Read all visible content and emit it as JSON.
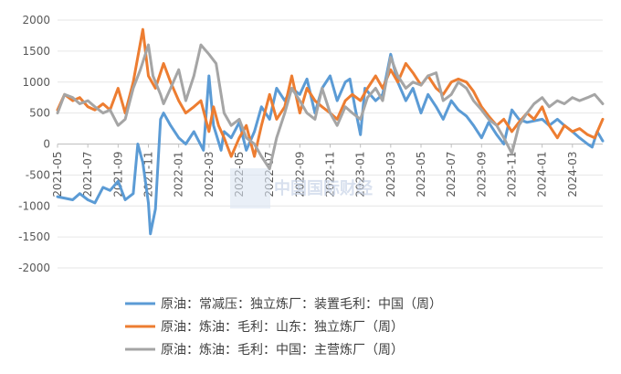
{
  "watermark": "中国国际财经",
  "chart_data": {
    "type": "line",
    "title": "",
    "xlabel": "",
    "ylabel": "",
    "ylim": [
      -2000,
      2000
    ],
    "yticks": [
      2000,
      1500,
      1000,
      500,
      0,
      -500,
      -1000,
      -1500,
      -2000
    ],
    "xlim": [
      "2021-05",
      "2024-05"
    ],
    "xticks": [
      "2021-05",
      "2021-07",
      "2021-09",
      "2021-11",
      "2022-01",
      "2022-03",
      "2022-05",
      "2022-07",
      "2022-09",
      "2022-11",
      "2023-01",
      "2023-03",
      "2023-05",
      "2023-07",
      "2023-09",
      "2023-11",
      "2024-01",
      "2024-03"
    ],
    "grid": true,
    "legend_position": "bottom",
    "series": [
      {
        "name": "原油：常减压：独立炼厂：装置毛利：中国（周）",
        "color": "#5b9bd5",
        "points": [
          [
            "2021-05",
            -850
          ],
          [
            "2021-06",
            -900
          ],
          [
            "2021-06-15",
            -800
          ],
          [
            "2021-07",
            -900
          ],
          [
            "2021-07-15",
            -950
          ],
          [
            "2021-08",
            -700
          ],
          [
            "2021-08-15",
            -750
          ],
          [
            "2021-09",
            -600
          ],
          [
            "2021-09-15",
            -900
          ],
          [
            "2021-10",
            -800
          ],
          [
            "2021-10-10",
            0
          ],
          [
            "2021-10-20",
            -300
          ],
          [
            "2021-11",
            -950
          ],
          [
            "2021-11-05",
            -1450
          ],
          [
            "2021-11-15",
            -1050
          ],
          [
            "2021-11-25",
            400
          ],
          [
            "2021-12",
            500
          ],
          [
            "2021-12-15",
            300
          ],
          [
            "2022-01",
            100
          ],
          [
            "2022-01-15",
            0
          ],
          [
            "2022-02",
            200
          ],
          [
            "2022-02-20",
            -100
          ],
          [
            "2022-03",
            1100
          ],
          [
            "2022-03-10",
            300
          ],
          [
            "2022-03-25",
            -100
          ],
          [
            "2022-04",
            200
          ],
          [
            "2022-04-15",
            100
          ],
          [
            "2022-05",
            350
          ],
          [
            "2022-05-15",
            -100
          ],
          [
            "2022-06",
            200
          ],
          [
            "2022-06-15",
            600
          ],
          [
            "2022-07",
            400
          ],
          [
            "2022-07-15",
            900
          ],
          [
            "2022-08",
            700
          ],
          [
            "2022-08-15",
            900
          ],
          [
            "2022-09",
            800
          ],
          [
            "2022-09-15",
            1050
          ],
          [
            "2022-10",
            500
          ],
          [
            "2022-10-15",
            900
          ],
          [
            "2022-11",
            1100
          ],
          [
            "2022-11-15",
            700
          ],
          [
            "2022-12",
            1000
          ],
          [
            "2022-12-10",
            1050
          ],
          [
            "2022-12-20",
            600
          ],
          [
            "2023-01",
            150
          ],
          [
            "2023-01-10",
            900
          ],
          [
            "2023-01-20",
            800
          ],
          [
            "2023-02",
            700
          ],
          [
            "2023-02-15",
            800
          ],
          [
            "2023-03",
            1450
          ],
          [
            "2023-03-15",
            1000
          ],
          [
            "2023-04",
            700
          ],
          [
            "2023-04-15",
            900
          ],
          [
            "2023-05",
            500
          ],
          [
            "2023-05-15",
            800
          ],
          [
            "2023-06",
            600
          ],
          [
            "2023-06-15",
            400
          ],
          [
            "2023-07",
            700
          ],
          [
            "2023-07-15",
            550
          ],
          [
            "2023-08",
            450
          ],
          [
            "2023-08-15",
            300
          ],
          [
            "2023-09",
            100
          ],
          [
            "2023-09-15",
            350
          ],
          [
            "2023-10",
            150
          ],
          [
            "2023-10-15",
            0
          ],
          [
            "2023-11",
            550
          ],
          [
            "2023-11-15",
            400
          ],
          [
            "2023-12",
            350
          ],
          [
            "2024-01",
            400
          ],
          [
            "2024-01-15",
            300
          ],
          [
            "2024-02",
            400
          ],
          [
            "2024-02-15",
            300
          ],
          [
            "2024-03",
            200
          ],
          [
            "2024-03-15",
            100
          ],
          [
            "2024-04",
            0
          ],
          [
            "2024-04-10",
            -50
          ],
          [
            "2024-04-20",
            200
          ],
          [
            "2024-05",
            50
          ]
        ]
      },
      {
        "name": "原油：炼油：毛利：山东：独立炼厂（周）",
        "color": "#ed7d31",
        "points": [
          [
            "2021-05",
            550
          ],
          [
            "2021-05-15",
            800
          ],
          [
            "2021-06",
            700
          ],
          [
            "2021-06-15",
            750
          ],
          [
            "2021-07",
            600
          ],
          [
            "2021-07-15",
            550
          ],
          [
            "2021-08",
            650
          ],
          [
            "2021-08-15",
            550
          ],
          [
            "2021-09",
            900
          ],
          [
            "2021-09-15",
            500
          ],
          [
            "2021-10",
            1000
          ],
          [
            "2021-10-20",
            1850
          ],
          [
            "2021-11",
            1100
          ],
          [
            "2021-11-15",
            900
          ],
          [
            "2021-12",
            1300
          ],
          [
            "2021-12-15",
            1000
          ],
          [
            "2022-01",
            700
          ],
          [
            "2022-01-15",
            500
          ],
          [
            "2022-02",
            600
          ],
          [
            "2022-02-15",
            700
          ],
          [
            "2022-03",
            200
          ],
          [
            "2022-03-10",
            600
          ],
          [
            "2022-03-20",
            300
          ],
          [
            "2022-04",
            100
          ],
          [
            "2022-04-15",
            -200
          ],
          [
            "2022-05",
            100
          ],
          [
            "2022-05-15",
            300
          ],
          [
            "2022-06",
            -200
          ],
          [
            "2022-06-15",
            300
          ],
          [
            "2022-07",
            800
          ],
          [
            "2022-07-15",
            400
          ],
          [
            "2022-08",
            600
          ],
          [
            "2022-08-15",
            1100
          ],
          [
            "2022-09",
            500
          ],
          [
            "2022-09-15",
            900
          ],
          [
            "2022-10",
            700
          ],
          [
            "2022-10-15",
            600
          ],
          [
            "2022-11",
            500
          ],
          [
            "2022-11-15",
            400
          ],
          [
            "2022-12",
            700
          ],
          [
            "2022-12-15",
            800
          ],
          [
            "2023-01",
            700
          ],
          [
            "2023-01-15",
            900
          ],
          [
            "2023-02",
            1100
          ],
          [
            "2023-02-15",
            900
          ],
          [
            "2023-03",
            1200
          ],
          [
            "2023-03-15",
            1000
          ],
          [
            "2023-04",
            1300
          ],
          [
            "2023-04-15",
            1150
          ],
          [
            "2023-05",
            950
          ],
          [
            "2023-05-15",
            1100
          ],
          [
            "2023-06",
            900
          ],
          [
            "2023-06-15",
            800
          ],
          [
            "2023-07",
            1000
          ],
          [
            "2023-07-15",
            1050
          ],
          [
            "2023-08",
            1000
          ],
          [
            "2023-08-15",
            850
          ],
          [
            "2023-09",
            600
          ],
          [
            "2023-09-15",
            450
          ],
          [
            "2023-10",
            300
          ],
          [
            "2023-10-15",
            400
          ],
          [
            "2023-11",
            200
          ],
          [
            "2023-11-15",
            350
          ],
          [
            "2023-12",
            500
          ],
          [
            "2023-12-15",
            400
          ],
          [
            "2024-01",
            600
          ],
          [
            "2024-01-15",
            300
          ],
          [
            "2024-02",
            100
          ],
          [
            "2024-02-15",
            300
          ],
          [
            "2024-03",
            200
          ],
          [
            "2024-03-15",
            250
          ],
          [
            "2024-04",
            150
          ],
          [
            "2024-04-15",
            100
          ],
          [
            "2024-05",
            400
          ]
        ]
      },
      {
        "name": "原油：炼油：毛利：中国：主营炼厂（周）",
        "color": "#a5a5a5",
        "points": [
          [
            "2021-05",
            500
          ],
          [
            "2021-05-15",
            800
          ],
          [
            "2021-06",
            750
          ],
          [
            "2021-06-15",
            650
          ],
          [
            "2021-07",
            700
          ],
          [
            "2021-07-15",
            600
          ],
          [
            "2021-08",
            500
          ],
          [
            "2021-08-15",
            550
          ],
          [
            "2021-09",
            300
          ],
          [
            "2021-09-15",
            400
          ],
          [
            "2021-10",
            900
          ],
          [
            "2021-10-15",
            1200
          ],
          [
            "2021-11",
            1600
          ],
          [
            "2021-11-10",
            1100
          ],
          [
            "2021-11-25",
            800
          ],
          [
            "2021-12",
            650
          ],
          [
            "2021-12-15",
            900
          ],
          [
            "2022-01",
            1200
          ],
          [
            "2022-01-15",
            700
          ],
          [
            "2022-02",
            1100
          ],
          [
            "2022-02-15",
            1600
          ],
          [
            "2022-03",
            1450
          ],
          [
            "2022-03-15",
            1300
          ],
          [
            "2022-04",
            500
          ],
          [
            "2022-04-15",
            300
          ],
          [
            "2022-05",
            400
          ],
          [
            "2022-05-15",
            100
          ],
          [
            "2022-06",
            0
          ],
          [
            "2022-06-15",
            -200
          ],
          [
            "2022-07",
            -400
          ],
          [
            "2022-07-15",
            100
          ],
          [
            "2022-08",
            500
          ],
          [
            "2022-08-15",
            900
          ],
          [
            "2022-09",
            700
          ],
          [
            "2022-09-15",
            500
          ],
          [
            "2022-10",
            400
          ],
          [
            "2022-10-15",
            900
          ],
          [
            "2022-11",
            500
          ],
          [
            "2022-11-15",
            300
          ],
          [
            "2022-12",
            600
          ],
          [
            "2022-12-15",
            500
          ],
          [
            "2023-01",
            400
          ],
          [
            "2023-01-15",
            750
          ],
          [
            "2023-02",
            900
          ],
          [
            "2023-02-15",
            700
          ],
          [
            "2023-03",
            1400
          ],
          [
            "2023-03-15",
            1100
          ],
          [
            "2023-04",
            900
          ],
          [
            "2023-04-15",
            1000
          ],
          [
            "2023-05",
            950
          ],
          [
            "2023-05-15",
            1100
          ],
          [
            "2023-06",
            1150
          ],
          [
            "2023-06-15",
            700
          ],
          [
            "2023-07",
            800
          ],
          [
            "2023-07-15",
            1000
          ],
          [
            "2023-08",
            900
          ],
          [
            "2023-08-15",
            700
          ],
          [
            "2023-09",
            550
          ],
          [
            "2023-09-15",
            400
          ],
          [
            "2023-10",
            300
          ],
          [
            "2023-10-15",
            100
          ],
          [
            "2023-11",
            -150
          ],
          [
            "2023-11-15",
            300
          ],
          [
            "2023-12",
            500
          ],
          [
            "2023-12-15",
            650
          ],
          [
            "2024-01",
            750
          ],
          [
            "2024-01-15",
            600
          ],
          [
            "2024-02",
            700
          ],
          [
            "2024-02-15",
            650
          ],
          [
            "2024-03",
            750
          ],
          [
            "2024-03-15",
            700
          ],
          [
            "2024-04",
            750
          ],
          [
            "2024-04-15",
            800
          ],
          [
            "2024-05",
            650
          ]
        ]
      }
    ]
  }
}
